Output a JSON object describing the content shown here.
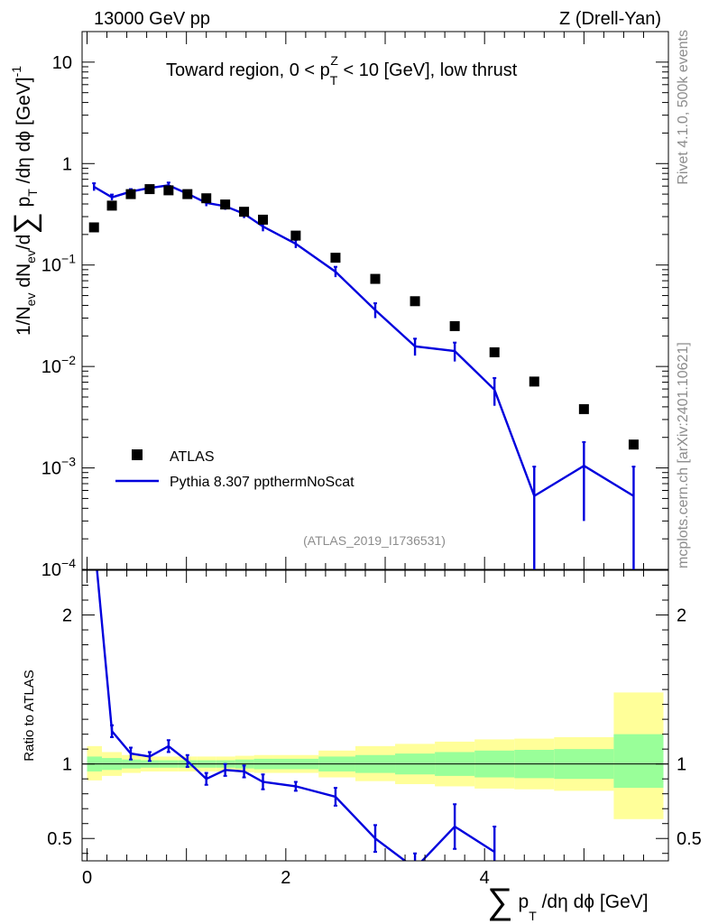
{
  "header": {
    "left_label": "13000 GeV pp",
    "right_label": "Z (Drell-Yan)"
  },
  "side_labels": {
    "rivet": "Rivet 4.1.0,  500k events",
    "mcplots": "mcplots.cern.ch [arXiv:2401.10621]"
  },
  "chart_data": [
    {
      "type": "scatter",
      "panel": "main",
      "title": "Toward region, 0 < p_T^Z < 10 [GeV], low thrust",
      "title_parts": {
        "prefix": "Toward region, 0 < p",
        "sub": "T",
        "sup": "Z",
        "suffix": " < 10 [GeV], low thrust"
      },
      "watermark": "(ATLAS_2019_I1736531)",
      "ylabel": "1/N_ev dN_ev/d∑ p_T /dη dϕ [GeV]^-1",
      "yscale": "log",
      "ylim": [
        0.0001,
        20
      ],
      "xlim": [
        -0.05,
        5.85
      ],
      "y_tick_labels": [
        {
          "value": 10,
          "base": "10",
          "exp": ""
        },
        {
          "value": 1,
          "base": "1",
          "exp": ""
        },
        {
          "value": 0.1,
          "base": "10",
          "exp": "−1"
        },
        {
          "value": 0.01,
          "base": "10",
          "exp": "−2"
        },
        {
          "value": 0.001,
          "base": "10",
          "exp": "−3"
        },
        {
          "value": 0.0001,
          "base": "10",
          "exp": "−4"
        }
      ],
      "legend": {
        "position": "bottom-left",
        "entries": [
          {
            "label": "ATLAS",
            "style": "marker",
            "color": "#000000"
          },
          {
            "label": "Pythia 8.307 ppthermNoScat",
            "style": "line",
            "color": "#0000dd"
          }
        ]
      },
      "series": [
        {
          "name": "ATLAS",
          "style": "marker",
          "color": "#000000",
          "x": [
            0.07,
            0.25,
            0.44,
            0.63,
            0.82,
            1.01,
            1.2,
            1.39,
            1.58,
            1.77,
            2.1,
            2.5,
            2.9,
            3.3,
            3.7,
            4.1,
            4.5,
            5.0,
            5.5
          ],
          "y": [
            0.235,
            0.385,
            0.5,
            0.56,
            0.545,
            0.5,
            0.455,
            0.395,
            0.335,
            0.28,
            0.195,
            0.118,
            0.073,
            0.044,
            0.025,
            0.0138,
            0.0071,
            0.0038,
            0.0017
          ]
        },
        {
          "name": "Pythia 8.307 ppthermNoScat",
          "style": "line",
          "color": "#0000dd",
          "x": [
            0.07,
            0.25,
            0.44,
            0.63,
            0.82,
            1.01,
            1.2,
            1.39,
            1.58,
            1.77,
            2.1,
            2.5,
            2.9,
            3.3,
            3.7,
            4.1,
            4.5,
            5.0,
            5.5
          ],
          "y": [
            0.59,
            0.465,
            0.53,
            0.575,
            0.61,
            0.505,
            0.41,
            0.38,
            0.32,
            0.24,
            0.162,
            0.086,
            0.036,
            0.0158,
            0.0142,
            0.0059,
            0.00053,
            0.00105,
            0.00053
          ],
          "y_err": [
            0.05,
            0.03,
            0.03,
            0.03,
            0.04,
            0.03,
            0.03,
            0.03,
            0.03,
            0.025,
            0.015,
            0.01,
            0.006,
            0.003,
            0.003,
            0.0018,
            0.0005,
            0.00075,
            0.0005
          ]
        }
      ]
    },
    {
      "type": "line",
      "panel": "ratio",
      "ylabel": "Ratio to ATLAS",
      "xlabel": "∑ p_T /dη dϕ [GeV]",
      "ylim": [
        0.35,
        2.3
      ],
      "xlim": [
        -0.05,
        5.85
      ],
      "x_ticks": [
        0,
        2,
        4
      ],
      "y_ticks": [
        0.5,
        1,
        2
      ],
      "reference_line": 1,
      "bands": [
        {
          "x_edges": [
            0.0,
            0.15,
            0.35,
            0.54,
            0.73,
            0.92,
            1.11,
            1.3,
            1.49,
            1.68,
            1.87,
            2.33,
            2.7,
            3.1,
            3.5,
            3.9,
            4.3,
            4.7,
            5.3,
            5.8
          ],
          "inner_lo": [
            0.95,
            0.96,
            0.97,
            0.975,
            0.975,
            0.975,
            0.975,
            0.975,
            0.97,
            0.965,
            0.965,
            0.95,
            0.94,
            0.93,
            0.92,
            0.91,
            0.905,
            0.9,
            0.84
          ],
          "inner_hi": [
            1.05,
            1.04,
            1.03,
            1.025,
            1.025,
            1.025,
            1.025,
            1.025,
            1.03,
            1.035,
            1.035,
            1.05,
            1.06,
            1.07,
            1.08,
            1.09,
            1.095,
            1.1,
            1.2
          ],
          "outer_lo": [
            0.89,
            0.92,
            0.94,
            0.95,
            0.95,
            0.95,
            0.95,
            0.95,
            0.945,
            0.94,
            0.94,
            0.91,
            0.885,
            0.865,
            0.85,
            0.835,
            0.83,
            0.82,
            0.63
          ],
          "outer_hi": [
            1.12,
            1.08,
            1.06,
            1.05,
            1.05,
            1.05,
            1.05,
            1.05,
            1.055,
            1.06,
            1.06,
            1.09,
            1.12,
            1.135,
            1.15,
            1.165,
            1.17,
            1.18,
            1.48
          ],
          "inner_color": "#99ff99",
          "outer_color": "#ffff99"
        }
      ],
      "series": [
        {
          "name": "Pythia 8.307 ppthermNoScat / ATLAS",
          "color": "#0000dd",
          "x": [
            0.07,
            0.25,
            0.44,
            0.63,
            0.82,
            1.01,
            1.2,
            1.39,
            1.58,
            1.77,
            2.1,
            2.5,
            2.9,
            3.3,
            3.7,
            4.1
          ],
          "y": [
            2.52,
            1.22,
            1.07,
            1.05,
            1.12,
            1.02,
            0.9,
            0.96,
            0.95,
            0.88,
            0.85,
            0.78,
            0.5,
            0.3,
            0.58,
            0.41
          ],
          "y_err": [
            0.08,
            0.04,
            0.04,
            0.03,
            0.04,
            0.04,
            0.04,
            0.04,
            0.04,
            0.05,
            0.03,
            0.06,
            0.09,
            0.1,
            0.15,
            0.17
          ]
        }
      ]
    }
  ]
}
